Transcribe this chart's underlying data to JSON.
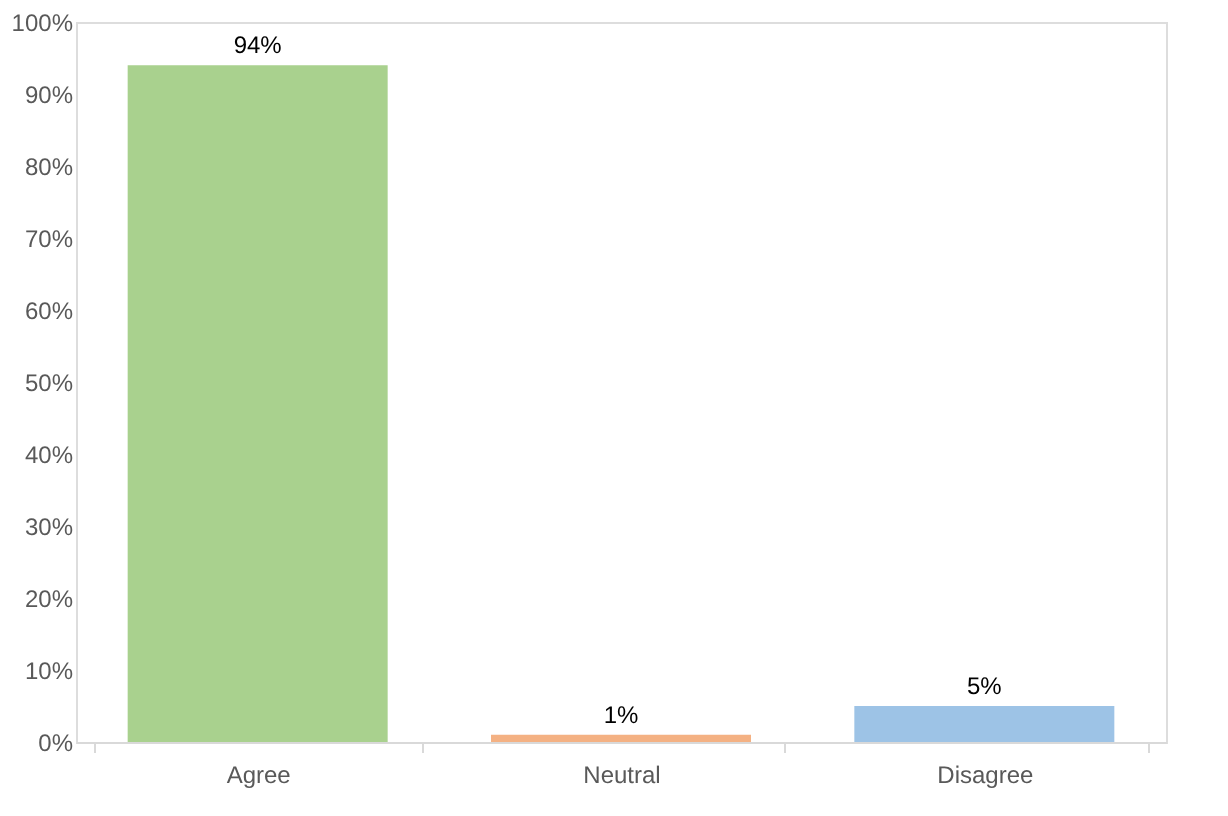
{
  "chart_data": {
    "type": "bar",
    "categories": [
      "Agree",
      "Neutral",
      "Disagree"
    ],
    "values": [
      94,
      1,
      5
    ],
    "colors": [
      "#a9d18e",
      "#f4b183",
      "#9dc3e6"
    ],
    "ylim": [
      0,
      100
    ],
    "yticks": [
      {
        "value": 0,
        "label": "0%"
      },
      {
        "value": 10,
        "label": "10%"
      },
      {
        "value": 20,
        "label": "20%"
      },
      {
        "value": 30,
        "label": "30%"
      },
      {
        "value": 40,
        "label": "40%"
      },
      {
        "value": 50,
        "label": "50%"
      },
      {
        "value": 60,
        "label": "60%"
      },
      {
        "value": 70,
        "label": "70%"
      },
      {
        "value": 80,
        "label": "80%"
      },
      {
        "value": 90,
        "label": "90%"
      },
      {
        "value": 100,
        "label": "100%"
      }
    ],
    "value_labels": [
      "94%",
      "1%",
      "5%"
    ],
    "grid": false
  }
}
